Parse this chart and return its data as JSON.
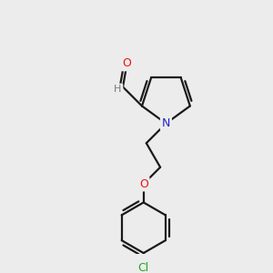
{
  "background_color": "#ececec",
  "bond_color": "#1a1a1a",
  "atom_colors": {
    "O": "#ee1111",
    "N": "#2222cc",
    "Cl": "#22aa22",
    "H": "#777777",
    "C": "#1a1a1a"
  },
  "figsize": [
    3.0,
    3.0
  ],
  "dpi": 100,
  "bond_lw": 1.6,
  "font_size": 9
}
